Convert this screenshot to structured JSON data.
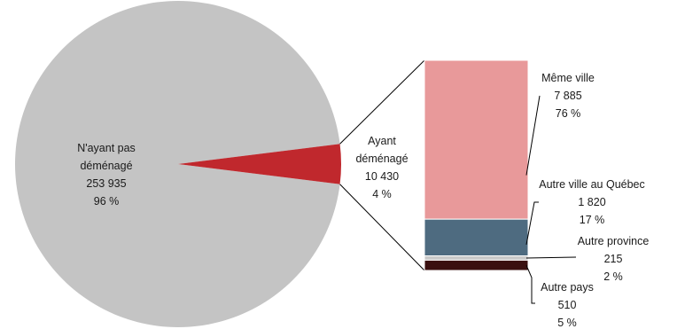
{
  "chart_data": {
    "type": "pie",
    "pie": {
      "slices": [
        {
          "lines": [
            "N'ayant pas",
            "déménagé",
            "253 935",
            "96 %"
          ],
          "value": 253935,
          "percent": 96,
          "color": "#c4c4c4"
        },
        {
          "lines": [
            "Ayant",
            "déménagé",
            "10 430",
            "4 %"
          ],
          "value": 10430,
          "percent": 4,
          "color": "#c0282d"
        }
      ]
    },
    "breakdown": {
      "type": "stacked-bar",
      "segments": [
        {
          "lines": [
            "Même ville",
            "7 885",
            "76 %"
          ],
          "value": 7885,
          "percent": 76,
          "color": "#e8999a"
        },
        {
          "lines": [
            "Autre ville au Québec",
            "1 820",
            "17 %"
          ],
          "value": 1820,
          "percent": 17,
          "color": "#4e6b80"
        },
        {
          "lines": [
            "Autre province",
            "215",
            "2 %"
          ],
          "value": 215,
          "percent": 2,
          "color": "#c9c9c9"
        },
        {
          "lines": [
            "Autre pays",
            "510",
            "5 %"
          ],
          "value": 510,
          "percent": 5,
          "color": "#3a1010"
        }
      ]
    }
  }
}
